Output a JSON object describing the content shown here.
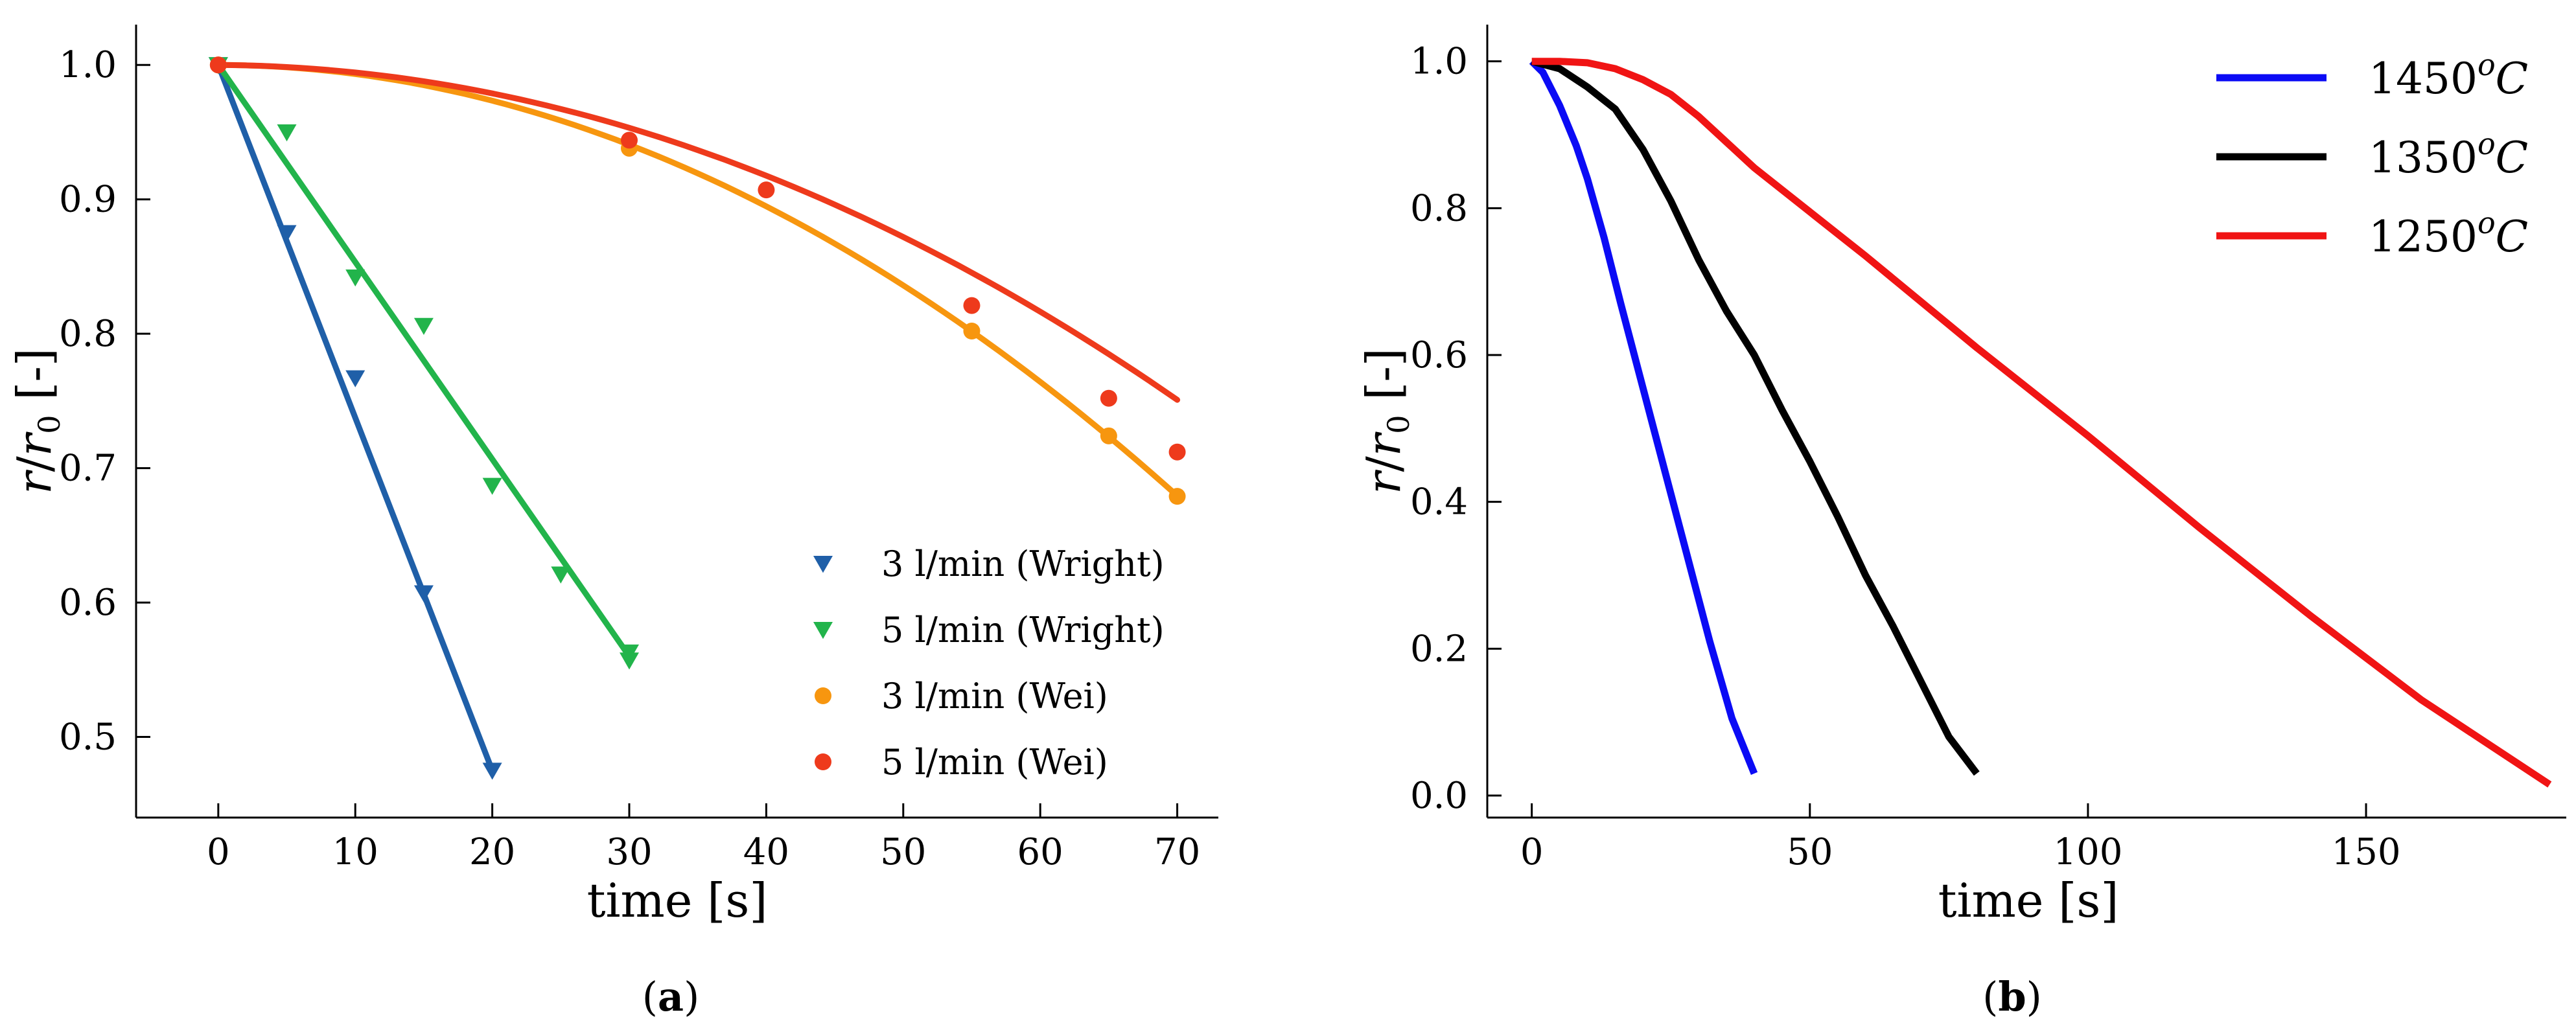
{
  "chart_data": [
    {
      "id": "a",
      "type": "scatter",
      "panel_label": "(a)",
      "panel_letter": "a",
      "xlabel": "time [s]",
      "ylabel_parts": [
        "r",
        "/",
        "r",
        "0",
        " [-]"
      ],
      "xlim": [
        -6,
        73
      ],
      "ylim": [
        0.44,
        1.03
      ],
      "xticks": [
        0,
        10,
        20,
        30,
        40,
        50,
        60,
        70
      ],
      "yticks": [
        0.5,
        0.6,
        0.7,
        0.8,
        0.9,
        1.0
      ],
      "xtick_labels": [
        "0",
        "10",
        "20",
        "30",
        "40",
        "50",
        "60",
        "70"
      ],
      "ytick_labels": [
        "0.5",
        "0.6",
        "0.7",
        "0.8",
        "0.9",
        "1.0"
      ],
      "legend_position": "lower-right",
      "series": [
        {
          "name": "3 l/min (Wright)",
          "color": "#1f5fa8",
          "marker": "triangle-down",
          "points": [
            [
              0,
              1.0
            ],
            [
              5,
              0.875
            ],
            [
              10,
              0.767
            ],
            [
              15,
              0.607
            ],
            [
              20,
              0.475
            ]
          ],
          "fit_line": [
            [
              0,
              1.0
            ],
            [
              20,
              0.475
            ]
          ]
        },
        {
          "name": "5 l/min (Wright)",
          "color": "#22b44b",
          "marker": "triangle-down",
          "points": [
            [
              0,
              1.0
            ],
            [
              5,
              0.95
            ],
            [
              10,
              0.842
            ],
            [
              15,
              0.806
            ],
            [
              20,
              0.687
            ],
            [
              25,
              0.621
            ],
            [
              30,
              0.563
            ],
            [
              30,
              0.557
            ]
          ],
          "fit_line": [
            [
              0,
              1.0
            ],
            [
              30,
              0.56
            ]
          ]
        },
        {
          "name": "3 l/min (Wei)",
          "color": "#f7960f",
          "marker": "circle",
          "points": [
            [
              0,
              1.0
            ],
            [
              30,
              0.938
            ],
            [
              55,
              0.802
            ],
            [
              65,
              0.724
            ],
            [
              70,
              0.679
            ]
          ],
          "fit_curve": {
            "kind": "quadratic",
            "y0": 1.0,
            "b": -3e-05,
            "c": -6.5e-05,
            "x_range": [
              0,
              70
            ]
          }
        },
        {
          "name": "5 l/min (Wei)",
          "color": "#ee3a1c",
          "marker": "circle",
          "points": [
            [
              0,
              1.0
            ],
            [
              30,
              0.944
            ],
            [
              40,
              0.907
            ],
            [
              55,
              0.821
            ],
            [
              65,
              0.752
            ],
            [
              70,
              0.712
            ]
          ],
          "fit_curve": {
            "kind": "quadratic",
            "y0": 1.0,
            "b": -6e-05,
            "c": -5e-05,
            "x_range": [
              0,
              70
            ]
          }
        }
      ]
    },
    {
      "id": "b",
      "type": "line",
      "panel_label": "(b)",
      "panel_letter": "b",
      "xlabel": "time [s]",
      "ylabel_parts": [
        "r",
        "/",
        "r",
        "0",
        " [-]"
      ],
      "xlim": [
        -8,
        186
      ],
      "ylim": [
        -0.03,
        1.05
      ],
      "xticks": [
        0,
        50,
        100,
        150
      ],
      "yticks": [
        0.0,
        0.2,
        0.4,
        0.6,
        0.8,
        1.0
      ],
      "xtick_labels": [
        "0",
        "50",
        "100",
        "150"
      ],
      "ytick_labels": [
        "0.0",
        "0.2",
        "0.4",
        "0.6",
        "0.8",
        "1.0"
      ],
      "legend_position": "top-right",
      "series": [
        {
          "name": "1450",
          "superscript": "o",
          "unit": "C",
          "color": "#0b0bf5",
          "x": [
            0,
            2,
            5,
            8,
            10,
            13,
            16,
            20,
            24,
            28,
            32,
            36,
            40
          ],
          "y": [
            1.0,
            0.985,
            0.94,
            0.885,
            0.84,
            0.76,
            0.67,
            0.555,
            0.44,
            0.325,
            0.21,
            0.105,
            0.03
          ]
        },
        {
          "name": "1350",
          "superscript": "o",
          "unit": "C",
          "color": "#000000",
          "x": [
            0,
            5,
            10,
            15,
            20,
            25,
            30,
            35,
            40,
            45,
            50,
            55,
            60,
            65,
            70,
            75,
            80
          ],
          "y": [
            1.0,
            0.99,
            0.965,
            0.935,
            0.88,
            0.81,
            0.73,
            0.66,
            0.6,
            0.525,
            0.455,
            0.38,
            0.3,
            0.23,
            0.155,
            0.08,
            0.03
          ]
        },
        {
          "name": "1250",
          "superscript": "o",
          "unit": "C",
          "color": "#f01414",
          "x": [
            0,
            5,
            10,
            15,
            20,
            25,
            30,
            35,
            40,
            45,
            50,
            60,
            80,
            100,
            120,
            140,
            160,
            183
          ],
          "y": [
            1.0,
            1.0,
            0.998,
            0.99,
            0.975,
            0.955,
            0.925,
            0.89,
            0.855,
            0.825,
            0.795,
            0.735,
            0.61,
            0.49,
            0.365,
            0.245,
            0.13,
            0.015
          ]
        }
      ]
    }
  ]
}
